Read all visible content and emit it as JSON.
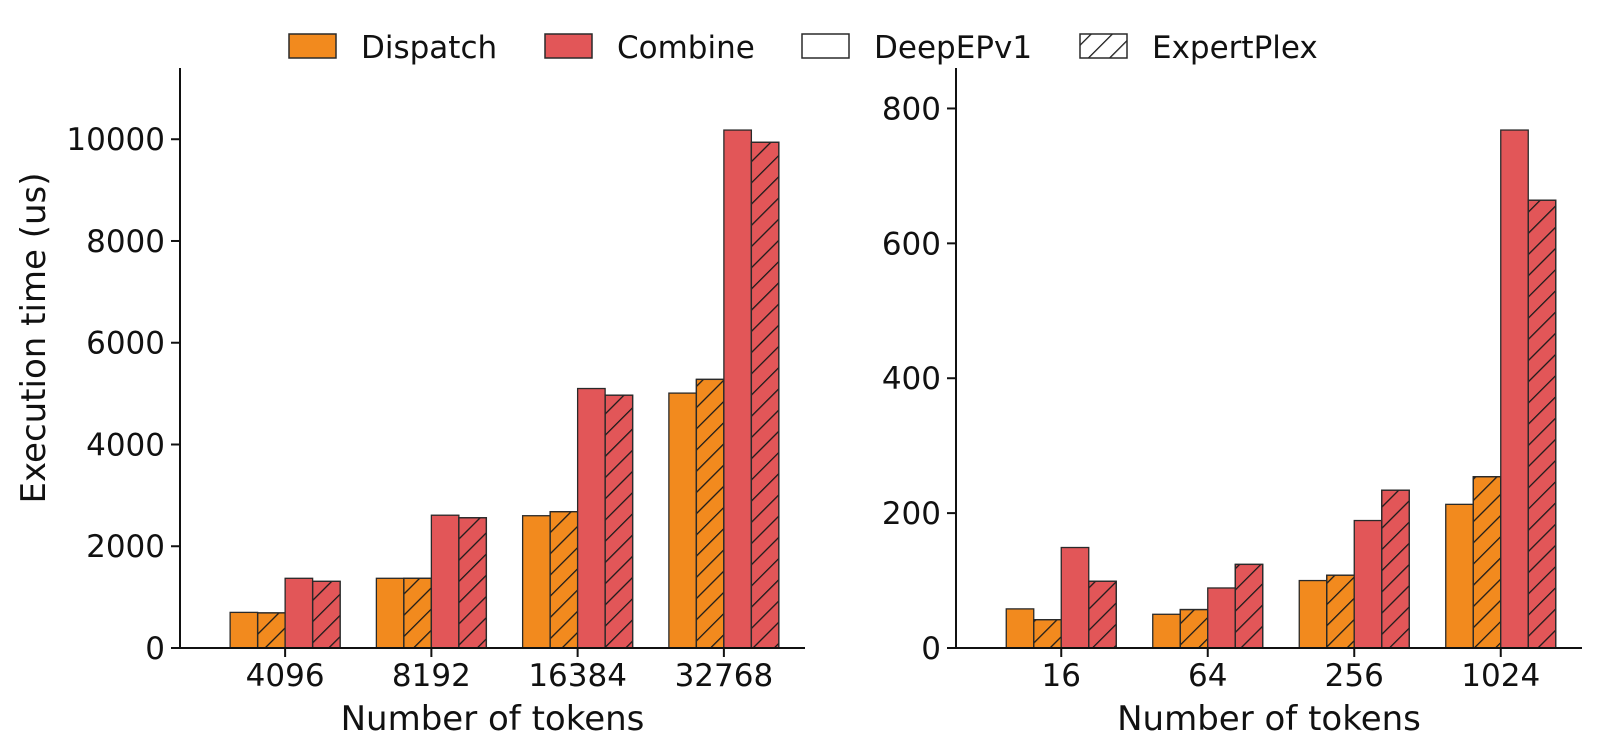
{
  "legend": {
    "items": [
      {
        "label": "Dispatch",
        "style": "dispatch"
      },
      {
        "label": "Combine",
        "style": "combine"
      },
      {
        "label": "DeepEPv1",
        "style": "plain"
      },
      {
        "label": "ExpertPlex",
        "style": "hatch"
      }
    ]
  },
  "colors": {
    "dispatch": "#F28A1E",
    "combine": "#E25658",
    "edge": "#2a2a2a",
    "axis": "#111111",
    "background": "#FFFFFF"
  },
  "chart_data": [
    {
      "type": "bar",
      "xlabel": "Number of tokens",
      "ylabel": "Execution time (us)",
      "categories": [
        "4096",
        "8192",
        "16384",
        "32768"
      ],
      "ylim": [
        0,
        11400
      ],
      "yticks": [
        0,
        2000,
        4000,
        6000,
        8000,
        10000
      ],
      "grid": false,
      "series": [
        {
          "name": "Dispatch DeepEPv1",
          "phase": "dispatch",
          "impl": "plain",
          "values": [
            700,
            1370,
            2600,
            5010
          ]
        },
        {
          "name": "Dispatch ExpertPlex",
          "phase": "dispatch",
          "impl": "hatch",
          "values": [
            690,
            1370,
            2680,
            5280
          ]
        },
        {
          "name": "Combine DeepEPv1",
          "phase": "combine",
          "impl": "plain",
          "values": [
            1370,
            2610,
            5100,
            10180
          ]
        },
        {
          "name": "Combine ExpertPlex",
          "phase": "combine",
          "impl": "hatch",
          "values": [
            1310,
            2560,
            4970,
            9940
          ]
        }
      ]
    },
    {
      "type": "bar",
      "xlabel": "Number of tokens",
      "ylabel": "",
      "categories": [
        "16",
        "64",
        "256",
        "1024"
      ],
      "ylim": [
        0,
        860
      ],
      "yticks": [
        0,
        200,
        400,
        600,
        800
      ],
      "grid": false,
      "series": [
        {
          "name": "Dispatch DeepEPv1",
          "phase": "dispatch",
          "impl": "plain",
          "values": [
            58,
            50,
            100,
            213
          ]
        },
        {
          "name": "Dispatch ExpertPlex",
          "phase": "dispatch",
          "impl": "hatch",
          "values": [
            42,
            57,
            108,
            254
          ]
        },
        {
          "name": "Combine DeepEPv1",
          "phase": "combine",
          "impl": "plain",
          "values": [
            149,
            89,
            189,
            768
          ]
        },
        {
          "name": "Combine ExpertPlex",
          "phase": "combine",
          "impl": "hatch",
          "values": [
            99,
            124,
            234,
            664
          ]
        }
      ]
    }
  ]
}
